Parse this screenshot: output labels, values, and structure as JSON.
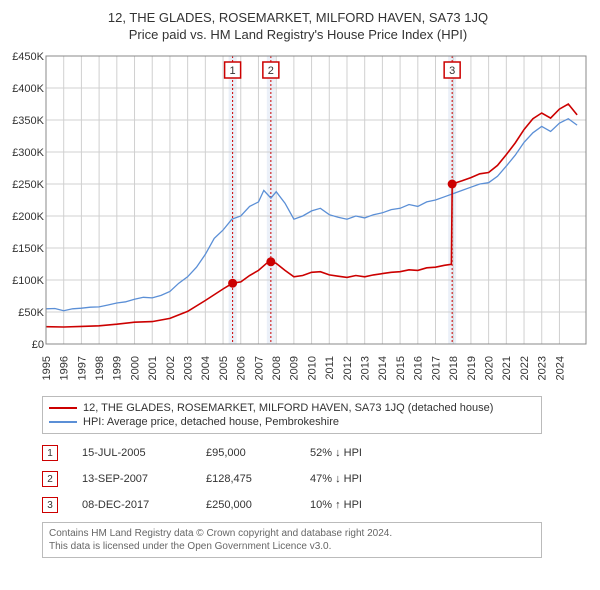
{
  "title": "12, THE GLADES, ROSEMARKET, MILFORD HAVEN, SA73 1JQ",
  "subtitle": "Price paid vs. HM Land Registry's House Price Index (HPI)",
  "chart": {
    "type": "line",
    "background_color": "#ffffff",
    "grid_color": "#d0d0d0",
    "axis_color": "#888888",
    "label_fontsize": 11,
    "title_fontsize": 13,
    "x_range": [
      1995,
      2025.5
    ],
    "y_range": [
      0,
      450000
    ],
    "y_ticks": [
      0,
      50000,
      100000,
      150000,
      200000,
      250000,
      300000,
      350000,
      400000,
      450000
    ],
    "y_tick_labels": [
      "£0",
      "£50K",
      "£100K",
      "£150K",
      "£200K",
      "£250K",
      "£300K",
      "£350K",
      "£400K",
      "£450K"
    ],
    "x_ticks": [
      1995,
      1996,
      1997,
      1998,
      1999,
      2000,
      2001,
      2002,
      2003,
      2004,
      2005,
      2006,
      2007,
      2008,
      2009,
      2010,
      2011,
      2012,
      2013,
      2014,
      2015,
      2016,
      2017,
      2018,
      2019,
      2020,
      2021,
      2022,
      2023,
      2024
    ],
    "sale_highlight_color": "#f2cccc",
    "sale_highlight_stroke": "#cc0000",
    "sale_marker_fill": "#cc0000",
    "series": {
      "hpi": {
        "name": "HPI: Average price, detached house, Pembrokeshire",
        "color": "#5b8fd6",
        "line_width": 1.3,
        "data": [
          [
            1995.0,
            55000
          ],
          [
            1995.5,
            55500
          ],
          [
            1996.0,
            52000
          ],
          [
            1996.5,
            55000
          ],
          [
            1997.0,
            56000
          ],
          [
            1997.5,
            57500
          ],
          [
            1998.0,
            58000
          ],
          [
            1998.5,
            61000
          ],
          [
            1999.0,
            64000
          ],
          [
            1999.5,
            66000
          ],
          [
            2000.0,
            70000
          ],
          [
            2000.5,
            73000
          ],
          [
            2001.0,
            72000
          ],
          [
            2001.5,
            76000
          ],
          [
            2002.0,
            82000
          ],
          [
            2002.5,
            95000
          ],
          [
            2003.0,
            105000
          ],
          [
            2003.5,
            120000
          ],
          [
            2004.0,
            140000
          ],
          [
            2004.5,
            165000
          ],
          [
            2005.0,
            178000
          ],
          [
            2005.5,
            195000
          ],
          [
            2006.0,
            200000
          ],
          [
            2006.5,
            215000
          ],
          [
            2007.0,
            222000
          ],
          [
            2007.3,
            240000
          ],
          [
            2007.7,
            228000
          ],
          [
            2008.0,
            238000
          ],
          [
            2008.5,
            220000
          ],
          [
            2009.0,
            195000
          ],
          [
            2009.5,
            200000
          ],
          [
            2010.0,
            208000
          ],
          [
            2010.5,
            212000
          ],
          [
            2011.0,
            202000
          ],
          [
            2011.5,
            198000
          ],
          [
            2012.0,
            195000
          ],
          [
            2012.5,
            200000
          ],
          [
            2013.0,
            197000
          ],
          [
            2013.5,
            202000
          ],
          [
            2014.0,
            205000
          ],
          [
            2014.5,
            210000
          ],
          [
            2015.0,
            212000
          ],
          [
            2015.5,
            218000
          ],
          [
            2016.0,
            215000
          ],
          [
            2016.5,
            222000
          ],
          [
            2017.0,
            225000
          ],
          [
            2017.5,
            230000
          ],
          [
            2018.0,
            235000
          ],
          [
            2018.5,
            240000
          ],
          [
            2019.0,
            245000
          ],
          [
            2019.5,
            250000
          ],
          [
            2020.0,
            252000
          ],
          [
            2020.5,
            262000
          ],
          [
            2021.0,
            278000
          ],
          [
            2021.5,
            295000
          ],
          [
            2022.0,
            315000
          ],
          [
            2022.5,
            330000
          ],
          [
            2023.0,
            340000
          ],
          [
            2023.5,
            332000
          ],
          [
            2024.0,
            345000
          ],
          [
            2024.5,
            352000
          ],
          [
            2025.0,
            342000
          ]
        ]
      },
      "property": {
        "name": "12, THE GLADES, ROSEMARKET, MILFORD HAVEN, SA73 1JQ (detached house)",
        "color": "#cc0000",
        "line_width": 1.6,
        "data": [
          [
            1995.0,
            27000
          ],
          [
            1996.0,
            26500
          ],
          [
            1997.0,
            27500
          ],
          [
            1998.0,
            28500
          ],
          [
            1999.0,
            31000
          ],
          [
            2000.0,
            34000
          ],
          [
            2001.0,
            35000
          ],
          [
            2002.0,
            40000
          ],
          [
            2003.0,
            51000
          ],
          [
            2004.0,
            68000
          ],
          [
            2005.0,
            86000
          ],
          [
            2005.54,
            95000
          ],
          [
            2006.0,
            97000
          ],
          [
            2006.5,
            107000
          ],
          [
            2007.0,
            115000
          ],
          [
            2007.5,
            127000
          ],
          [
            2007.7,
            128475
          ],
          [
            2008.0,
            126000
          ],
          [
            2008.5,
            115000
          ],
          [
            2009.0,
            105000
          ],
          [
            2009.5,
            107000
          ],
          [
            2010.0,
            112000
          ],
          [
            2010.5,
            113000
          ],
          [
            2011.0,
            108000
          ],
          [
            2011.5,
            106000
          ],
          [
            2012.0,
            104000
          ],
          [
            2012.5,
            107000
          ],
          [
            2013.0,
            105000
          ],
          [
            2013.5,
            108000
          ],
          [
            2014.0,
            110000
          ],
          [
            2014.5,
            112000
          ],
          [
            2015.0,
            113000
          ],
          [
            2015.5,
            116000
          ],
          [
            2016.0,
            115000
          ],
          [
            2016.5,
            119000
          ],
          [
            2017.0,
            120000
          ],
          [
            2017.5,
            123000
          ],
          [
            2017.9,
            124500
          ],
          [
            2017.94,
            250000
          ],
          [
            2018.5,
            255000
          ],
          [
            2019.0,
            260000
          ],
          [
            2019.5,
            266000
          ],
          [
            2020.0,
            268000
          ],
          [
            2020.5,
            279000
          ],
          [
            2021.0,
            296000
          ],
          [
            2021.5,
            314000
          ],
          [
            2022.0,
            335000
          ],
          [
            2022.5,
            352000
          ],
          [
            2023.0,
            361000
          ],
          [
            2023.5,
            353000
          ],
          [
            2024.0,
            367000
          ],
          [
            2024.5,
            375000
          ],
          [
            2025.0,
            358000
          ]
        ]
      }
    },
    "sale_markers": [
      {
        "n": "1",
        "x": 2005.54,
        "y": 95000
      },
      {
        "n": "2",
        "x": 2007.7,
        "y": 128475
      },
      {
        "n": "3",
        "x": 2017.94,
        "y": 250000
      }
    ]
  },
  "legend": [
    {
      "color": "#cc0000",
      "label": "12, THE GLADES, ROSEMARKET, MILFORD HAVEN, SA73 1JQ (detached house)"
    },
    {
      "color": "#5b8fd6",
      "label": "HPI: Average price, detached house, Pembrokeshire"
    }
  ],
  "sales": [
    {
      "n": "1",
      "date": "15-JUL-2005",
      "price": "£95,000",
      "pct": "52% ↓ HPI"
    },
    {
      "n": "2",
      "date": "13-SEP-2007",
      "price": "£128,475",
      "pct": "47% ↓ HPI"
    },
    {
      "n": "3",
      "date": "08-DEC-2017",
      "price": "£250,000",
      "pct": "10% ↑ HPI"
    }
  ],
  "attribution": {
    "line1": "Contains HM Land Registry data © Crown copyright and database right 2024.",
    "line2": "This data is licensed under the Open Government Licence v3.0."
  }
}
